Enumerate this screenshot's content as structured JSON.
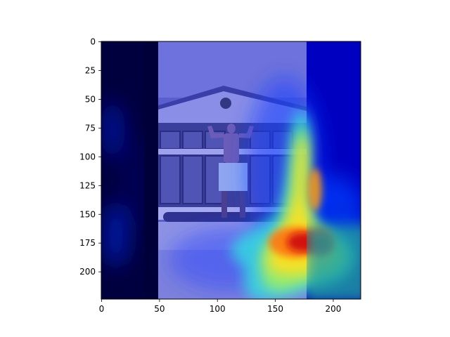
{
  "chart_data": {
    "type": "heatmap",
    "title": "",
    "xlabel": "",
    "ylabel": "",
    "xlim": [
      0,
      224
    ],
    "ylim": [
      224,
      0
    ],
    "x_ticks": [
      "0",
      "50",
      "100",
      "150",
      "200"
    ],
    "y_ticks": [
      "0",
      "25",
      "50",
      "75",
      "100",
      "125",
      "150",
      "175",
      "200"
    ],
    "colormap": "jet",
    "grid": false,
    "legend": "none",
    "image_description": "photo of a man flexing on a ledge in front of a building, overlaid with a saliency heatmap",
    "hotspot": {
      "x": 165,
      "y": 175,
      "level": "high"
    },
    "warm_band": {
      "x_range": [
        120,
        225
      ],
      "y_range": [
        70,
        215
      ],
      "level": "medium-high"
    },
    "dark_panel_x_range": [
      0,
      49
    ],
    "bright_panel_x_range": [
      49,
      178
    ]
  }
}
